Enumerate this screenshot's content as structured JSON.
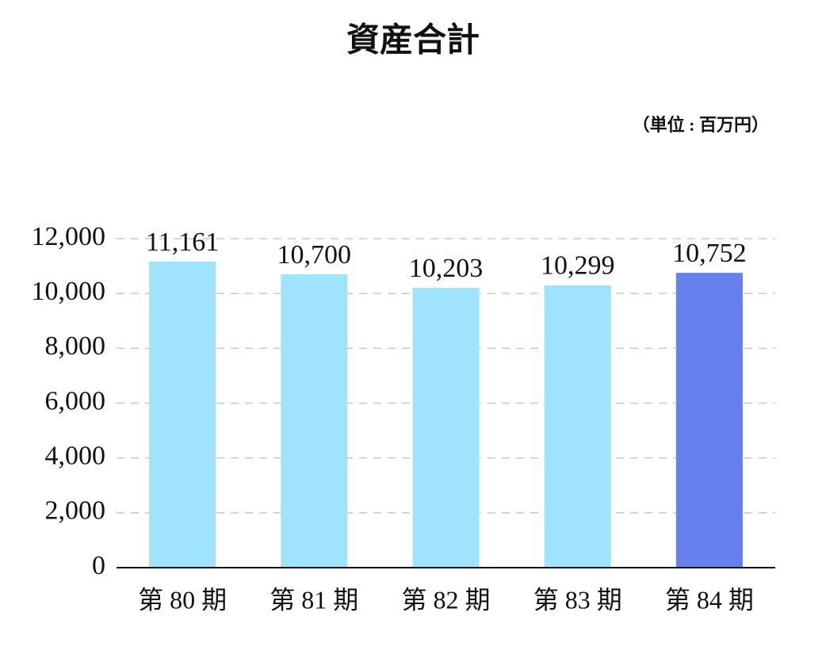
{
  "chart_data": {
    "type": "bar",
    "title": "資産合計",
    "unit_note": "（単位 : 百万円）",
    "categories": [
      "第 80 期",
      "第 81 期",
      "第 82 期",
      "第 83 期",
      "第 84 期"
    ],
    "values": [
      11161,
      10700,
      10203,
      10299,
      10752
    ],
    "value_labels": [
      "11,161",
      "10,700",
      "10,203",
      "10,299",
      "10,752"
    ],
    "colors": [
      "#a0e3fd",
      "#a0e3fd",
      "#a0e3fd",
      "#a0e3fd",
      "#6680ef"
    ],
    "ylim": [
      0,
      12000
    ],
    "yticks": [
      0,
      {
        "value": 2000,
        "label": "2,000"
      },
      {
        "value": 4000,
        "label": "4,000"
      },
      {
        "value": 6000,
        "label": "6,000"
      },
      {
        "value": 8000,
        "label": "8,000"
      },
      {
        "value": 10000,
        "label": "10,000"
      },
      {
        "value": 12000,
        "label": "12,000"
      }
    ],
    "grid": true
  }
}
